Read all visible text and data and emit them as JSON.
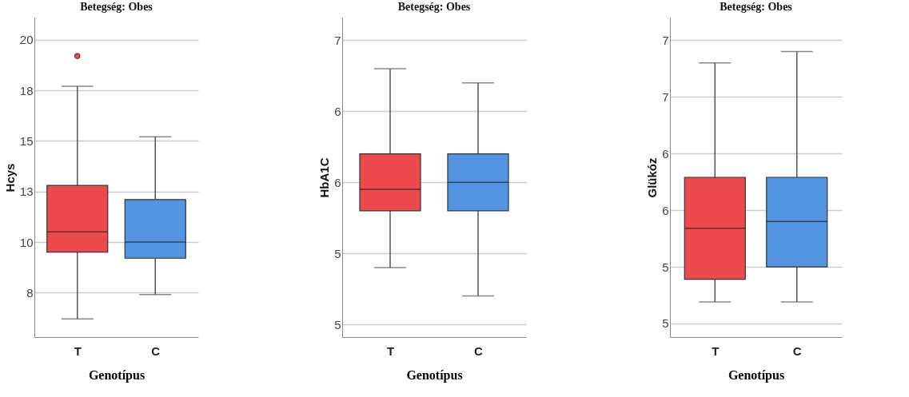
{
  "chart_data": [
    {
      "type": "box",
      "title": "Betegség: Obes",
      "xlabel": "Genotípus",
      "ylabel": "Hcys",
      "categories": [
        "T",
        "C"
      ],
      "colors": [
        "#ec4a4c",
        "#5294e2"
      ],
      "boxes": [
        {
          "low": 6.2,
          "q1": 9.5,
          "median": 10.5,
          "q3": 12.8,
          "high": 17.7,
          "outliers": [
            19.2
          ]
        },
        {
          "low": 7.4,
          "q1": 9.2,
          "median": 10.0,
          "q3": 12.1,
          "high": 15.2
        }
      ],
      "ylim": [
        5.3,
        21.1
      ],
      "yticks": [
        {
          "value": 7.5,
          "label": "8"
        },
        10,
        {
          "value": 12.5,
          "label": "13"
        },
        15,
        {
          "value": 17.5,
          "label": "18"
        },
        20
      ],
      "grid": "y"
    },
    {
      "type": "box",
      "title": "Betegség: Obes",
      "xlabel": "Genotípus",
      "ylabel": "HbA1C",
      "categories": [
        "T",
        "C"
      ],
      "colors": [
        "#ec4a4c",
        "#5294e2"
      ],
      "boxes": [
        {
          "low": 5.15,
          "q1": 5.55,
          "median": 5.7,
          "q3": 5.95,
          "high": 6.55
        },
        {
          "low": 4.95,
          "q1": 5.55,
          "median": 5.75,
          "q3": 5.95,
          "high": 6.45
        }
      ],
      "ylim": [
        4.66,
        6.91
      ],
      "yticks": [
        {
          "value": 4.75,
          "label": "5"
        },
        {
          "value": 5.25,
          "label": "5"
        },
        {
          "value": 5.75,
          "label": "6"
        },
        {
          "value": 6.25,
          "label": "6"
        },
        {
          "value": 6.75,
          "label": "7"
        }
      ],
      "grid": "y"
    },
    {
      "type": "box",
      "title": "Betegség: Obes",
      "xlabel": "Genotípus",
      "ylabel": "Glükóz",
      "categories": [
        "T",
        "C"
      ],
      "colors": [
        "#ec4a4c",
        "#5294e2"
      ],
      "boxes": [
        {
          "low": 4.94,
          "q1": 5.14,
          "median": 5.59,
          "q3": 6.04,
          "high": 7.05
        },
        {
          "low": 4.94,
          "q1": 5.25,
          "median": 5.65,
          "q3": 6.04,
          "high": 7.15
        }
      ],
      "ylim": [
        4.63,
        7.45
      ],
      "yticks": [
        {
          "value": 4.75,
          "label": "5"
        },
        {
          "value": 5.25,
          "label": "5"
        },
        {
          "value": 5.75,
          "label": "6"
        },
        {
          "value": 6.25,
          "label": "6"
        },
        {
          "value": 6.75,
          "label": "7"
        },
        {
          "value": 7.25,
          "label": "7"
        }
      ],
      "grid": "y"
    }
  ]
}
